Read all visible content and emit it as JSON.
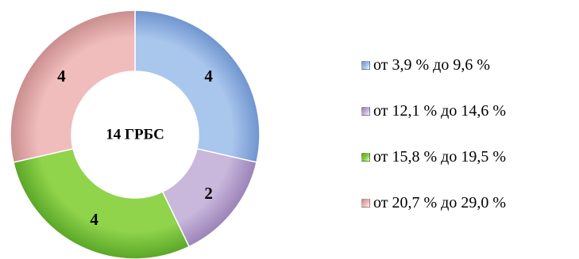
{
  "chart_data": {
    "type": "pie",
    "style": "donut",
    "center_label": "14 ГРБС",
    "categories": [
      "от 3,9 % до 9,6 %",
      "от 12,1 % до 14,6 %",
      "от 15,8 % до 19,5 %",
      "от 20,7 % до 29,0 %"
    ],
    "values": [
      4,
      2,
      4,
      4
    ],
    "colors": [
      "#a9c6ec",
      "#c9b7dc",
      "#8fd44b",
      "#f0bcbc"
    ],
    "edge_colors": [
      "#6f94cf",
      "#9a83b8",
      "#5aa628",
      "#c98e8e"
    ],
    "legend": "right"
  }
}
